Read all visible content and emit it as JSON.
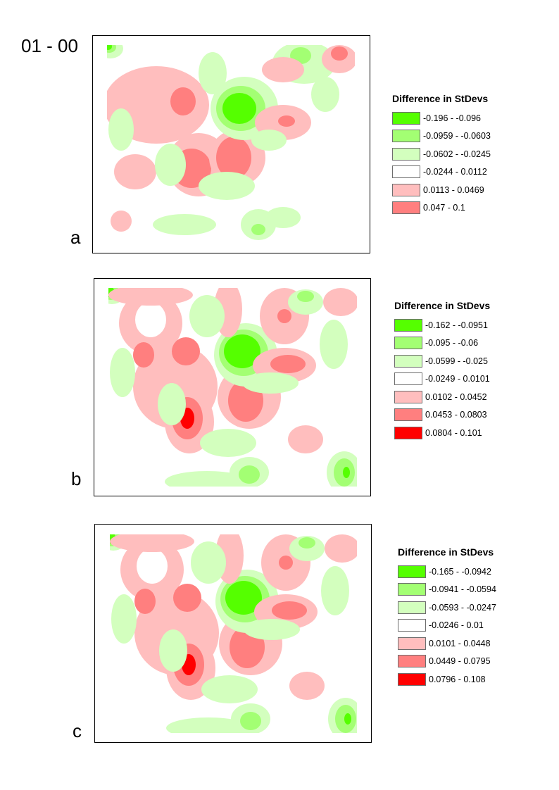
{
  "page_title": "01 - 00",
  "legend_title": "Difference in StDevs",
  "panels": [
    {
      "label": "a",
      "classes": [
        {
          "range": "-0.196 - -0.096",
          "color": "#55ff00"
        },
        {
          "range": "-0.0959 - -0.0603",
          "color": "#a3ff73"
        },
        {
          "range": "-0.0602 - -0.0245",
          "color": "#d3ffbe"
        },
        {
          "range": "-0.0244 - 0.0112",
          "color": "#ffffff"
        },
        {
          "range": "0.0113 - 0.0469",
          "color": "#ffbebe"
        },
        {
          "range": "0.047 - 0.1",
          "color": "#ff7f7f"
        }
      ]
    },
    {
      "label": "b",
      "classes": [
        {
          "range": "-0.162 - -0.0951",
          "color": "#55ff00"
        },
        {
          "range": "-0.095 - -0.06",
          "color": "#a3ff73"
        },
        {
          "range": "-0.0599 - -0.025",
          "color": "#d3ffbe"
        },
        {
          "range": "-0.0249 - 0.0101",
          "color": "#ffffff"
        },
        {
          "range": "0.0102 - 0.0452",
          "color": "#ffbebe"
        },
        {
          "range": "0.0453 - 0.0803",
          "color": "#ff7f7f"
        },
        {
          "range": "0.0804 - 0.101",
          "color": "#ff0000"
        }
      ]
    },
    {
      "label": "c",
      "classes": [
        {
          "range": "-0.165 - -0.0942",
          "color": "#55ff00"
        },
        {
          "range": "-0.0941 - -0.0594",
          "color": "#a3ff73"
        },
        {
          "range": "-0.0593 - -0.0247",
          "color": "#d3ffbe"
        },
        {
          "range": "-0.0246 - 0.01",
          "color": "#ffffff"
        },
        {
          "range": "0.0101 - 0.0448",
          "color": "#ffbebe"
        },
        {
          "range": "0.0449 - 0.0795",
          "color": "#ff7f7f"
        },
        {
          "range": "0.0796 - 0.108",
          "color": "#ff0000"
        }
      ]
    }
  ]
}
